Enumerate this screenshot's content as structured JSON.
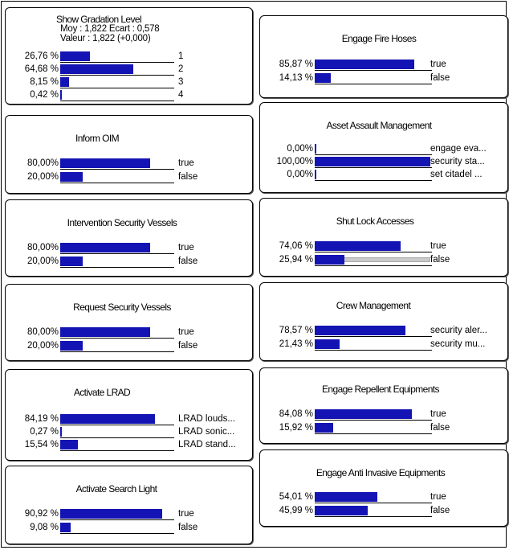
{
  "nodes": [
    {
      "id": "show-gradation-level",
      "title": "Show Gradation Level",
      "stats": [
        "Moy : 1,822 Ecart : 0,578",
        "Valeur : 1,822 (+0,000)"
      ],
      "states": [
        {
          "pct": "26,76 %",
          "value": 26.76,
          "label": "1"
        },
        {
          "pct": "64,68 %",
          "value": 64.68,
          "label": "2"
        },
        {
          "pct": "8,15 %",
          "value": 8.15,
          "label": "3"
        },
        {
          "pct": "0,42 %",
          "value": 0.42,
          "label": "4"
        }
      ]
    },
    {
      "id": "inform-oim",
      "title": "Inform OIM",
      "states": [
        {
          "pct": "80,00%",
          "value": 80.0,
          "label": "true"
        },
        {
          "pct": "20,00%",
          "value": 20.0,
          "label": "false"
        }
      ]
    },
    {
      "id": "intervention-security-vessels",
      "title": "Intervention Security Vessels",
      "states": [
        {
          "pct": "80,00%",
          "value": 80.0,
          "label": "true"
        },
        {
          "pct": "20,00%",
          "value": 20.0,
          "label": "false"
        }
      ]
    },
    {
      "id": "request-security-vessels",
      "title": "Request Security Vessels",
      "states": [
        {
          "pct": "80,00%",
          "value": 80.0,
          "label": "true"
        },
        {
          "pct": "20,00%",
          "value": 20.0,
          "label": "false"
        }
      ]
    },
    {
      "id": "activate-lrad",
      "title": "Activate LRAD",
      "states": [
        {
          "pct": "84,19 %",
          "value": 84.19,
          "label": "LRAD louds..."
        },
        {
          "pct": "0,27 %",
          "value": 0.27,
          "label": "LRAD sonic..."
        },
        {
          "pct": "15,54 %",
          "value": 15.54,
          "label": "LRAD stand..."
        }
      ]
    },
    {
      "id": "activate-search-light",
      "title": "Activate Search Light",
      "states": [
        {
          "pct": "90,92 %",
          "value": 90.92,
          "label": "true"
        },
        {
          "pct": "9,08 %",
          "value": 9.08,
          "label": "false"
        }
      ]
    },
    {
      "id": "engage-fire-hoses",
      "title": "Engage Fire Hoses",
      "states": [
        {
          "pct": "85,87 %",
          "value": 85.87,
          "label": "true"
        },
        {
          "pct": "14,13 %",
          "value": 14.13,
          "label": "false"
        }
      ]
    },
    {
      "id": "asset-assault-management",
      "title": "Asset Assault Management",
      "states": [
        {
          "pct": "0,00%",
          "value": 0.0,
          "label": "engage eva..."
        },
        {
          "pct": "100,00%",
          "value": 100.0,
          "label": "security sta..."
        },
        {
          "pct": "0,00%",
          "value": 0.0,
          "label": "set citadel ..."
        }
      ]
    },
    {
      "id": "shut-lock-accesses",
      "title": "Shut Lock Accesses",
      "states": [
        {
          "pct": "74,06 %",
          "value": 74.06,
          "prior": 74.06,
          "label": "true"
        },
        {
          "pct": "25,94 %",
          "value": 25.94,
          "prior": 100.0,
          "label": "false"
        }
      ]
    },
    {
      "id": "crew-management",
      "title": "Crew Management",
      "states": [
        {
          "pct": "78,57 %",
          "value": 78.57,
          "label": "security aler..."
        },
        {
          "pct": "21,43 %",
          "value": 21.43,
          "label": "security mu..."
        }
      ]
    },
    {
      "id": "engage-repellent-equipments",
      "title": "Engage Repellent Equipments",
      "states": [
        {
          "pct": "84,08 %",
          "value": 84.08,
          "label": "true"
        },
        {
          "pct": "15,92 %",
          "value": 15.92,
          "label": "false"
        }
      ]
    },
    {
      "id": "engage-anti-invasive-equipments",
      "title": "Engage Anti Invasive Equipments",
      "states": [
        {
          "pct": "54,01 %",
          "value": 54.01,
          "label": "true"
        },
        {
          "pct": "45,99 %",
          "value": 45.99,
          "label": "false"
        }
      ]
    }
  ],
  "colors": {
    "bar": "#1414b4",
    "prior_bar": "#c9c9c9"
  }
}
